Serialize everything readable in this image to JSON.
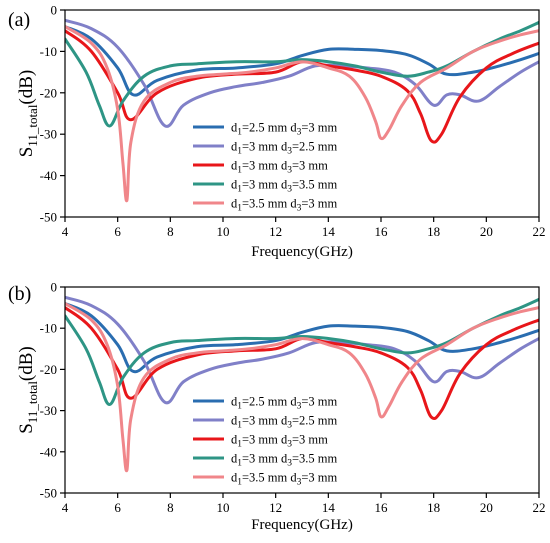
{
  "chart_data": [
    {
      "type": "line",
      "panel_label": "(a)",
      "xlabel": "Frequency(GHz)",
      "ylabel": {
        "main": "S",
        "sub": "11_total",
        "unit": "(dB)"
      },
      "xlim": [
        4,
        22
      ],
      "ylim": [
        -50,
        0
      ],
      "xticks": [
        4,
        6,
        8,
        10,
        12,
        14,
        16,
        18,
        20,
        22
      ],
      "yticks": [
        0,
        -10,
        -20,
        -30,
        -40,
        -50
      ],
      "legend_position": "center-left",
      "series": [
        {
          "name": "d1=2.5 mm d3=3 mm",
          "label_parts": [
            "d",
            "1",
            "=2.5 mm d",
            "3",
            "=3 mm"
          ],
          "color": "#2a6db0",
          "x": [
            4,
            5,
            6,
            6.6,
            7.5,
            9,
            10.5,
            12,
            13,
            14,
            15,
            16,
            17,
            17.8,
            18.5,
            19.5,
            20.5,
            21.3,
            22
          ],
          "y": [
            -4,
            -7,
            -14,
            -20.5,
            -17,
            -14.5,
            -14,
            -13,
            -11,
            -9.5,
            -9.5,
            -9.8,
            -10.8,
            -13,
            -15.5,
            -15,
            -13.5,
            -12,
            -10.5
          ]
        },
        {
          "name": "d1=3 mm d3=2.5 mm",
          "label_parts": [
            "d",
            "1",
            "=3 mm d",
            "3",
            "=2.5 mm"
          ],
          "color": "#8080c8",
          "x": [
            4,
            5,
            6,
            7,
            7.8,
            8.5,
            9.5,
            10.5,
            11.5,
            12.5,
            13.5,
            14.5,
            15.5,
            16.5,
            17.3,
            18,
            18.5,
            19,
            19.7,
            20.5,
            21.3,
            22
          ],
          "y": [
            -2.5,
            -4.5,
            -9,
            -18,
            -28,
            -23,
            -20,
            -18.5,
            -17.5,
            -16,
            -13.5,
            -13.5,
            -14,
            -15,
            -18,
            -23,
            -20.5,
            -20.5,
            -22,
            -18.5,
            -15,
            -12.5
          ]
        },
        {
          "name": "d1=3 mm d3=3 mm",
          "label_parts": [
            "d",
            "1",
            "=3 mm d",
            "3",
            "=3 mm"
          ],
          "color": "#e8161a",
          "x": [
            4,
            5,
            6,
            6.5,
            7.5,
            9,
            10.5,
            12,
            13,
            14,
            15,
            16,
            17,
            17.5,
            17.9,
            18.3,
            19,
            20,
            21,
            22
          ],
          "y": [
            -5,
            -10,
            -20,
            -26.5,
            -20,
            -16.5,
            -15.5,
            -15,
            -12.5,
            -13.5,
            -14.5,
            -16,
            -19.5,
            -25,
            -31.5,
            -30,
            -21,
            -14,
            -10.5,
            -8
          ]
        },
        {
          "name": "d1=3 mm d3=3.5 mm",
          "label_parts": [
            "d",
            "1",
            "=3 mm d",
            "3",
            "=3.5 mm"
          ],
          "color": "#2e9585",
          "x": [
            4,
            4.8,
            5.3,
            5.7,
            6.2,
            7,
            8,
            9,
            10.5,
            12,
            13,
            14,
            15,
            16,
            17,
            17.8,
            18.5,
            19.5,
            20.5,
            21.3,
            22
          ],
          "y": [
            -7,
            -15,
            -23,
            -28,
            -22,
            -16,
            -13.5,
            -13,
            -12.5,
            -12.5,
            -12,
            -12.5,
            -13.5,
            -15,
            -16,
            -15,
            -13.5,
            -10,
            -7,
            -5,
            -3
          ]
        },
        {
          "name": "d1=3.5 mm d3=3 mm",
          "label_parts": [
            "d",
            "1",
            "=3.5 mm d",
            "3",
            "=3 mm"
          ],
          "color": "#f0868a",
          "x": [
            4,
            5,
            5.6,
            6,
            6.2,
            6.35,
            6.5,
            7,
            8,
            9,
            10,
            11,
            12,
            13,
            14,
            14.8,
            15.4,
            15.8,
            16,
            16.3,
            16.8,
            17.5,
            18.5,
            19.5,
            20.5,
            21.3,
            22
          ],
          "y": [
            -4,
            -8,
            -14,
            -24,
            -37,
            -46,
            -32,
            -22,
            -17.5,
            -16,
            -15.5,
            -15,
            -14,
            -12.5,
            -14,
            -16,
            -21,
            -27,
            -31,
            -29,
            -23,
            -17.5,
            -14,
            -10,
            -7.5,
            -6,
            -5
          ]
        }
      ]
    },
    {
      "type": "line",
      "panel_label": "(b)",
      "xlabel": "Frequency(GHz)",
      "ylabel": {
        "main": "S",
        "sub": "11_total",
        "unit": "(dB)"
      },
      "xlim": [
        4,
        22
      ],
      "ylim": [
        -50,
        0
      ],
      "xticks": [
        4,
        6,
        8,
        10,
        12,
        14,
        16,
        18,
        20,
        22
      ],
      "yticks": [
        0,
        -10,
        -20,
        -30,
        -40,
        -50
      ],
      "legend_position": "center-left",
      "series": [
        {
          "name": "d1=2.5 mm d3=3 mm",
          "label_parts": [
            "d",
            "1",
            "=2.5 mm d",
            "3",
            "=3 mm"
          ],
          "color": "#2a6db0",
          "x": [
            4,
            5,
            6,
            6.6,
            7.5,
            9,
            10.5,
            12,
            13,
            14,
            15,
            16,
            17,
            17.8,
            18.5,
            19.5,
            20.5,
            21.3,
            22
          ],
          "y": [
            -4,
            -7,
            -14,
            -20.5,
            -17,
            -14.5,
            -14,
            -13,
            -11,
            -9.5,
            -9.5,
            -9.8,
            -10.8,
            -13,
            -15.5,
            -15,
            -13.5,
            -12,
            -10.5
          ]
        },
        {
          "name": "d1=3 mm d3=2.5 mm",
          "label_parts": [
            "d",
            "1",
            "=3 mm d",
            "3",
            "=2.5 mm"
          ],
          "color": "#8080c8",
          "x": [
            4,
            5,
            6,
            7,
            7.8,
            8.5,
            9.5,
            10.5,
            11.5,
            12.5,
            13.5,
            14.5,
            15.5,
            16.5,
            17.3,
            18,
            18.5,
            19,
            19.7,
            20.5,
            21.3,
            22
          ],
          "y": [
            -2.5,
            -4.5,
            -9,
            -18,
            -28,
            -23,
            -20,
            -18.5,
            -17.5,
            -16,
            -13.5,
            -13.5,
            -14,
            -15,
            -18,
            -23,
            -20.5,
            -20.5,
            -22,
            -18.5,
            -15,
            -12.5
          ]
        },
        {
          "name": "d1=3 mm d3=3 mm",
          "label_parts": [
            "d",
            "1",
            "=3 mm d",
            "3",
            "=3 mm"
          ],
          "color": "#e8161a",
          "x": [
            4,
            5,
            6,
            6.5,
            7.5,
            9,
            10.5,
            12,
            13,
            14,
            15,
            16,
            17,
            17.5,
            17.9,
            18.3,
            19,
            20,
            21,
            22
          ],
          "y": [
            -5,
            -10,
            -20,
            -27,
            -20,
            -16.5,
            -15.5,
            -15,
            -12.5,
            -13.5,
            -14.5,
            -16,
            -19.5,
            -25,
            -31.5,
            -30,
            -21,
            -14,
            -10.5,
            -8
          ]
        },
        {
          "name": "d1=3 mm d3=3.5 mm",
          "label_parts": [
            "d",
            "1",
            "=3 mm d",
            "3",
            "=3.5 mm"
          ],
          "color": "#2e9585",
          "x": [
            4,
            4.8,
            5.3,
            5.7,
            6.2,
            7,
            8,
            9,
            10.5,
            12,
            13,
            14,
            15,
            16,
            17,
            17.8,
            18.5,
            19.5,
            20.5,
            21.3,
            22
          ],
          "y": [
            -7,
            -15,
            -23,
            -28.5,
            -22,
            -16,
            -13.5,
            -13,
            -12.5,
            -12.5,
            -12,
            -12.5,
            -13.5,
            -15,
            -16,
            -15,
            -13.5,
            -10,
            -7,
            -5,
            -3
          ]
        },
        {
          "name": "d1=3.5 mm d3=3 mm",
          "label_parts": [
            "d",
            "1",
            "=3.5 mm d",
            "3",
            "=3 mm"
          ],
          "color": "#f0868a",
          "x": [
            4,
            5,
            5.6,
            6,
            6.2,
            6.35,
            6.5,
            7,
            8,
            9,
            10,
            11,
            12,
            13,
            14,
            14.8,
            15.4,
            15.8,
            16,
            16.3,
            16.8,
            17.5,
            18.5,
            19.5,
            20.5,
            21.3,
            22
          ],
          "y": [
            -4,
            -8,
            -14,
            -24,
            -37,
            -44.5,
            -32,
            -22,
            -17.5,
            -16,
            -15.5,
            -15,
            -14,
            -12.5,
            -14,
            -16,
            -21,
            -27,
            -31.5,
            -29,
            -23,
            -17.5,
            -14,
            -10,
            -7.5,
            -6,
            -5
          ]
        }
      ]
    }
  ]
}
